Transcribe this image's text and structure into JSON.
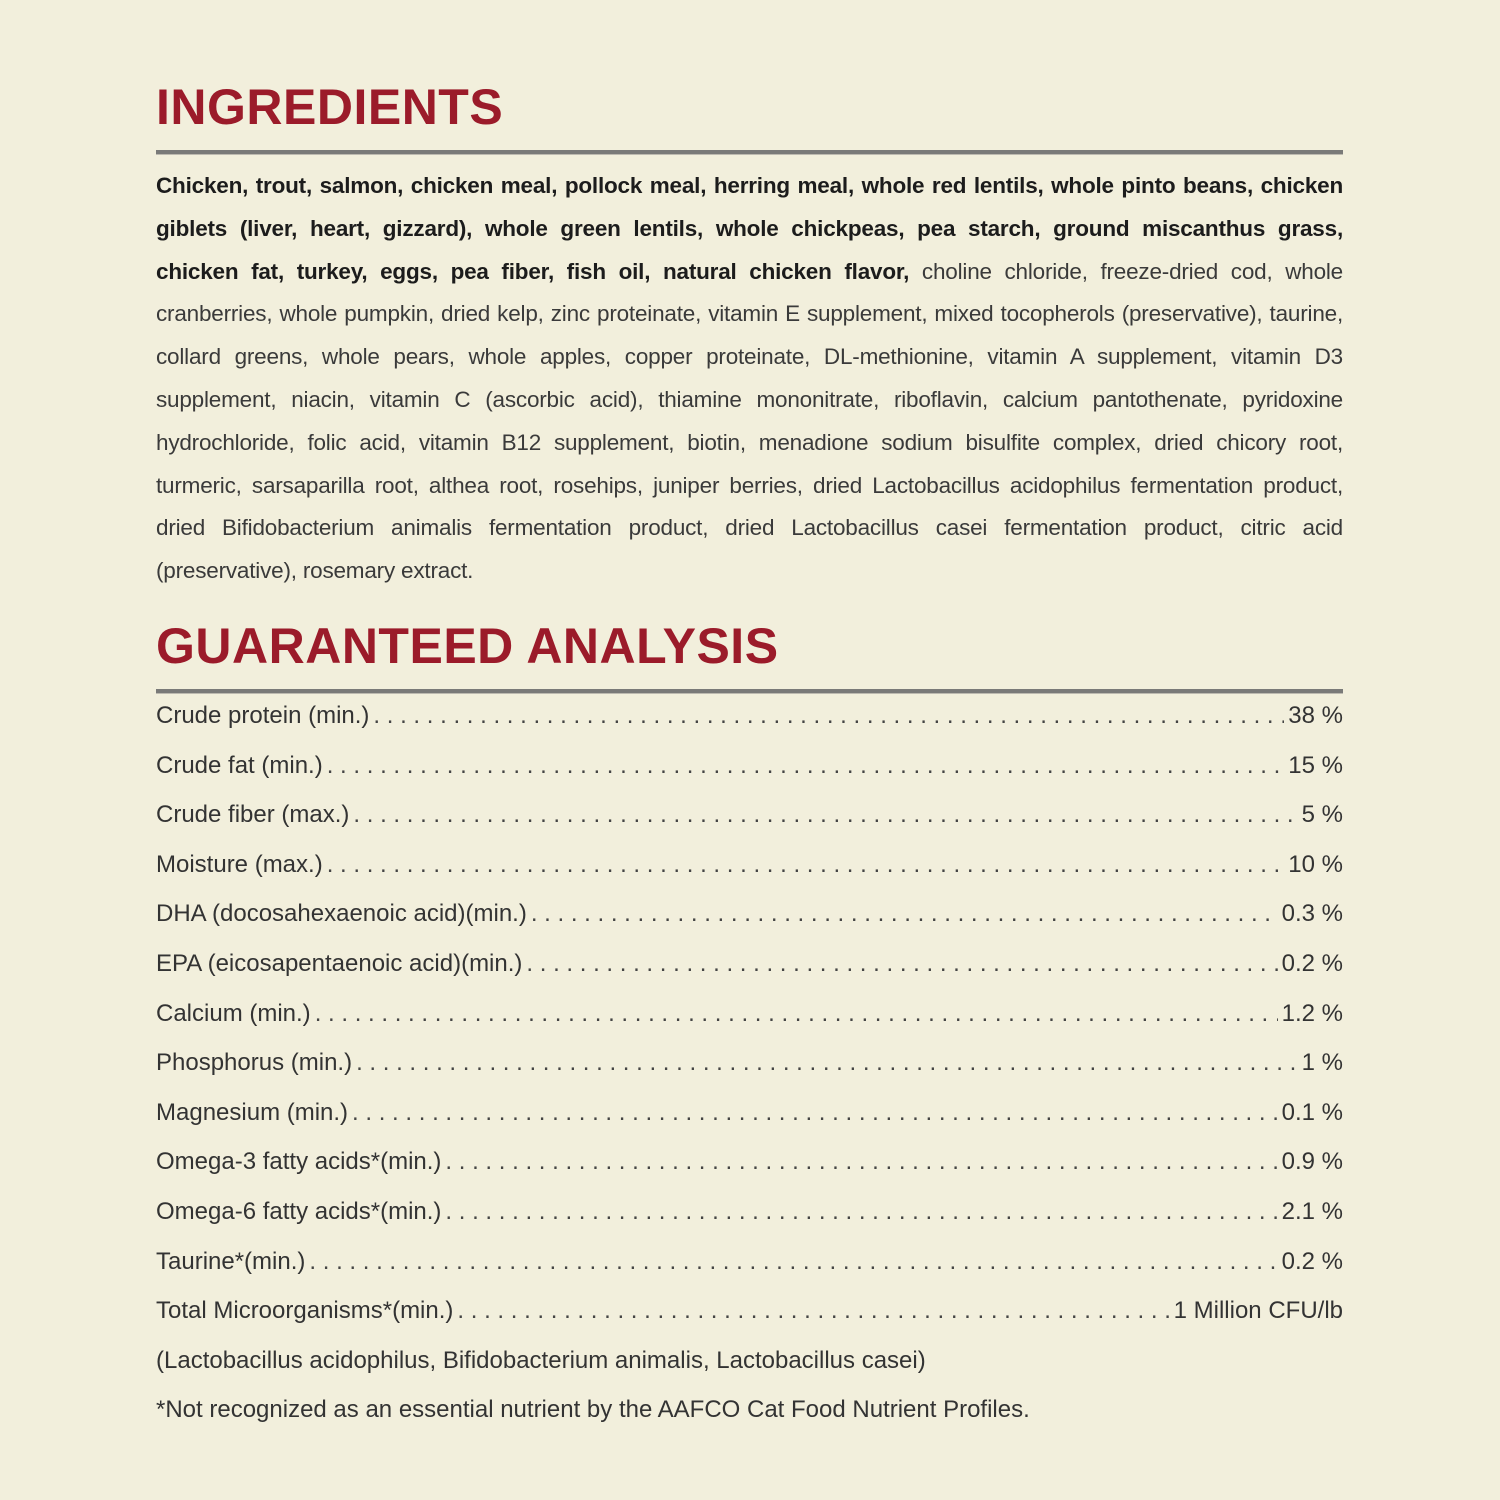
{
  "ingredients": {
    "title": "INGREDIENTS",
    "bold_text": "Chicken, trout, salmon, chicken meal, pollock meal, herring meal, whole red lentils, whole pinto beans, chicken giblets (liver, heart, gizzard), whole green lentils, whole chickpeas, pea starch, ground miscanthus grass, chicken fat, turkey, eggs, pea fiber, fish oil, natural chicken flavor,",
    "regular_text": " choline chloride, freeze-dried cod, whole cranberries, whole pumpkin, dried kelp, zinc proteinate, vitamin E supplement, mixed tocopherols (preservative), taurine, collard greens, whole pears, whole apples, copper proteinate, DL-methionine, vitamin A supplement, vitamin D3 supplement, niacin, vitamin C (ascorbic acid), thiamine mononitrate, riboflavin, calcium pantothenate, pyridoxine hydrochloride, folic acid, vitamin B12 supplement, biotin, menadione sodium bisulfite complex, dried chicory root, turmeric, sarsaparilla root, althea root, rosehips, juniper berries, dried Lactobacillus acidophilus fermentation product, dried Bifidobacterium animalis fermentation product, dried Lactobacillus casei fermentation product, citric acid (preservative), rosemary extract."
  },
  "analysis": {
    "title": "GUARANTEED ANALYSIS",
    "rows": [
      {
        "label": "Crude protein (min.)",
        "value": "38 %"
      },
      {
        "label": "Crude fat (min.)",
        "value": "15 %"
      },
      {
        "label": "Crude fiber (max.)",
        "value": "5 %"
      },
      {
        "label": "Moisture (max.)",
        "value": "10 %"
      },
      {
        "label": "DHA (docosahexaenoic acid)(min.)",
        "value": "0.3 %"
      },
      {
        "label": "EPA (eicosapentaenoic acid)(min.)",
        "value": "0.2 %"
      },
      {
        "label": "Calcium (min.)",
        "value": "1.2 %"
      },
      {
        "label": "Phosphorus (min.)",
        "value": "1 %"
      },
      {
        "label": "Magnesium (min.)",
        "value": "0.1 %"
      },
      {
        "label": "Omega-3 fatty acids*(min.)",
        "value": "0.9 %"
      },
      {
        "label": "Omega-6 fatty acids*(min.)",
        "value": "2.1 %"
      },
      {
        "label": "Taurine*(min.)",
        "value": "0.2 %"
      },
      {
        "label": "Total Microorganisms*(min.)",
        "value": "1 Million CFU/lb"
      }
    ],
    "organisms_note": "(Lactobacillus acidophilus, Bifidobacterium animalis, Lactobacillus casei)",
    "footnote": "*Not recognized as an essential nutrient by the AAFCO Cat Food Nutrient Profiles."
  }
}
